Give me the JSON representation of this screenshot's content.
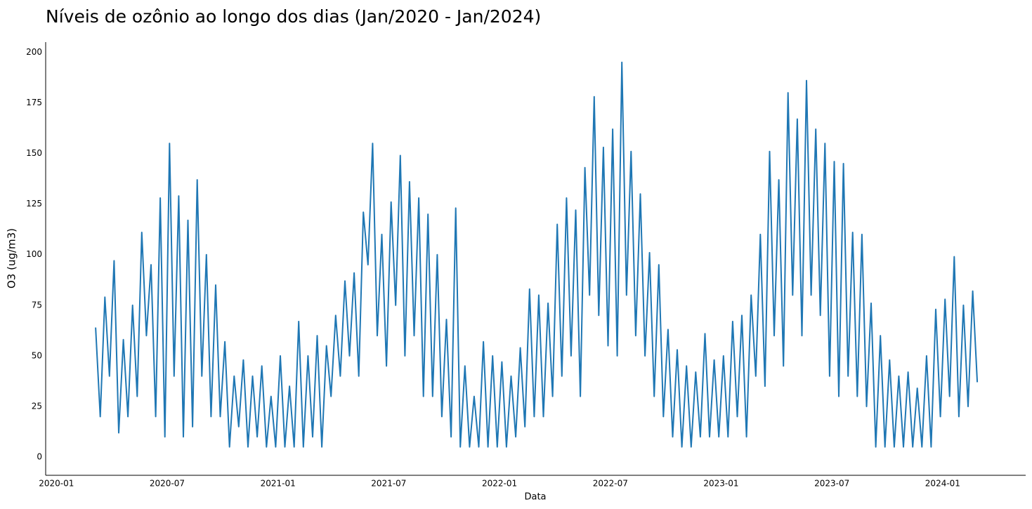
{
  "chart_data": {
    "type": "line",
    "title": "Níveis de ozônio ao longo dos dias (Jan/2020 - Jan/2024)",
    "xlabel": "Data",
    "ylabel": "O3 (ug/m3)",
    "xlim": [
      "2019-12",
      "2024-05"
    ],
    "xticks": [
      "2020-01",
      "2020-07",
      "2021-01",
      "2021-07",
      "2022-01",
      "2022-07",
      "2023-01",
      "2023-07",
      "2024-01"
    ],
    "ylim": [
      -9,
      205
    ],
    "yticks": [
      0,
      25,
      50,
      75,
      100,
      125,
      150,
      175,
      200
    ],
    "x": [
      "2020-03",
      "2020-03",
      "2020-03",
      "2020-03",
      "2020-04",
      "2020-04",
      "2020-04",
      "2020-04",
      "2020-05",
      "2020-05",
      "2020-05",
      "2020-05",
      "2020-06",
      "2020-06",
      "2020-06",
      "2020-06",
      "2020-07",
      "2020-07",
      "2020-07",
      "2020-07",
      "2020-08",
      "2020-08",
      "2020-08",
      "2020-08",
      "2020-09",
      "2020-09",
      "2020-09",
      "2020-09",
      "2020-10",
      "2020-10",
      "2020-10",
      "2020-10",
      "2020-11",
      "2020-11",
      "2020-11",
      "2020-11",
      "2020-12",
      "2020-12",
      "2020-12",
      "2020-12",
      "2021-01",
      "2021-01",
      "2021-01",
      "2021-01",
      "2021-02",
      "2021-02",
      "2021-02",
      "2021-02",
      "2021-03",
      "2021-03",
      "2021-03",
      "2021-03",
      "2021-04",
      "2021-04",
      "2021-04",
      "2021-04",
      "2021-05",
      "2021-05",
      "2021-05",
      "2021-05",
      "2021-06",
      "2021-06",
      "2021-06",
      "2021-06",
      "2021-07",
      "2021-07",
      "2021-07",
      "2021-07",
      "2021-08",
      "2021-08",
      "2021-08",
      "2021-08",
      "2021-09",
      "2021-09",
      "2021-09",
      "2021-09",
      "2021-10",
      "2021-10",
      "2021-10",
      "2021-10",
      "2021-11",
      "2021-11",
      "2021-11",
      "2021-11",
      "2021-12",
      "2021-12",
      "2021-12",
      "2021-12",
      "2022-01",
      "2022-01",
      "2022-01",
      "2022-01",
      "2022-02",
      "2022-02",
      "2022-02",
      "2022-02",
      "2022-03",
      "2022-03",
      "2022-03",
      "2022-03",
      "2022-04",
      "2022-04",
      "2022-04",
      "2022-04",
      "2022-05",
      "2022-05",
      "2022-05",
      "2022-05",
      "2022-06",
      "2022-06",
      "2022-06",
      "2022-06",
      "2022-07",
      "2022-07",
      "2022-07",
      "2022-07",
      "2022-08",
      "2022-08",
      "2022-08",
      "2022-08",
      "2022-09",
      "2022-09",
      "2022-09",
      "2022-09",
      "2022-10",
      "2022-10",
      "2022-10",
      "2022-10",
      "2022-11",
      "2022-11",
      "2022-11",
      "2022-11",
      "2022-12",
      "2022-12",
      "2022-12",
      "2022-12",
      "2023-01",
      "2023-01",
      "2023-01",
      "2023-01",
      "2023-02",
      "2023-02",
      "2023-02",
      "2023-02",
      "2023-03",
      "2023-03",
      "2023-03",
      "2023-03",
      "2023-04",
      "2023-04",
      "2023-04",
      "2023-04",
      "2023-05",
      "2023-05",
      "2023-05",
      "2023-05",
      "2023-06",
      "2023-06",
      "2023-06",
      "2023-06",
      "2023-07",
      "2023-07",
      "2023-07",
      "2023-07",
      "2023-08",
      "2023-08",
      "2023-08",
      "2023-08",
      "2023-09",
      "2023-09",
      "2023-09",
      "2023-09",
      "2023-10",
      "2023-10",
      "2023-10",
      "2023-10",
      "2023-11",
      "2023-11",
      "2023-11",
      "2023-11",
      "2023-12",
      "2023-12",
      "2023-12",
      "2023-12",
      "2024-01",
      "2024-01",
      "2024-01",
      "2024-01",
      "2024-02",
      "2024-02",
      "2024-02",
      "2024-02"
    ],
    "series": [
      {
        "color": "#1f77b4",
        "values": [
          64,
          20,
          79,
          40,
          97,
          12,
          58,
          20,
          75,
          30,
          111,
          60,
          95,
          20,
          128,
          10,
          155,
          40,
          129,
          10,
          117,
          15,
          137,
          40,
          100,
          20,
          85,
          20,
          57,
          5,
          40,
          15,
          48,
          5,
          40,
          10,
          45,
          5,
          30,
          5,
          50,
          5,
          35,
          5,
          67,
          5,
          50,
          10,
          60,
          5,
          55,
          30,
          70,
          40,
          87,
          50,
          91,
          40,
          121,
          95,
          155,
          60,
          110,
          45,
          126,
          75,
          149,
          50,
          136,
          60,
          128,
          30,
          120,
          30,
          100,
          20,
          68,
          10,
          123,
          5,
          45,
          5,
          30,
          5,
          57,
          5,
          50,
          5,
          47,
          5,
          40,
          10,
          54,
          15,
          83,
          20,
          80,
          20,
          76,
          30,
          115,
          40,
          128,
          50,
          122,
          30,
          143,
          80,
          178,
          70,
          153,
          55,
          162,
          50,
          195,
          80,
          151,
          60,
          130,
          50,
          101,
          30,
          95,
          20,
          63,
          10,
          53,
          5,
          45,
          5,
          42,
          10,
          61,
          10,
          48,
          10,
          50,
          10,
          67,
          20,
          70,
          10,
          80,
          40,
          110,
          35,
          151,
          60,
          137,
          45,
          180,
          80,
          167,
          60,
          186,
          80,
          162,
          70,
          155,
          40,
          146,
          30,
          145,
          40,
          111,
          30,
          110,
          25,
          76,
          5,
          60,
          5,
          48,
          5,
          40,
          5,
          42,
          5,
          34,
          5,
          50,
          5,
          73,
          20,
          78,
          30,
          99,
          20,
          75,
          25,
          82,
          37
        ]
      }
    ]
  }
}
